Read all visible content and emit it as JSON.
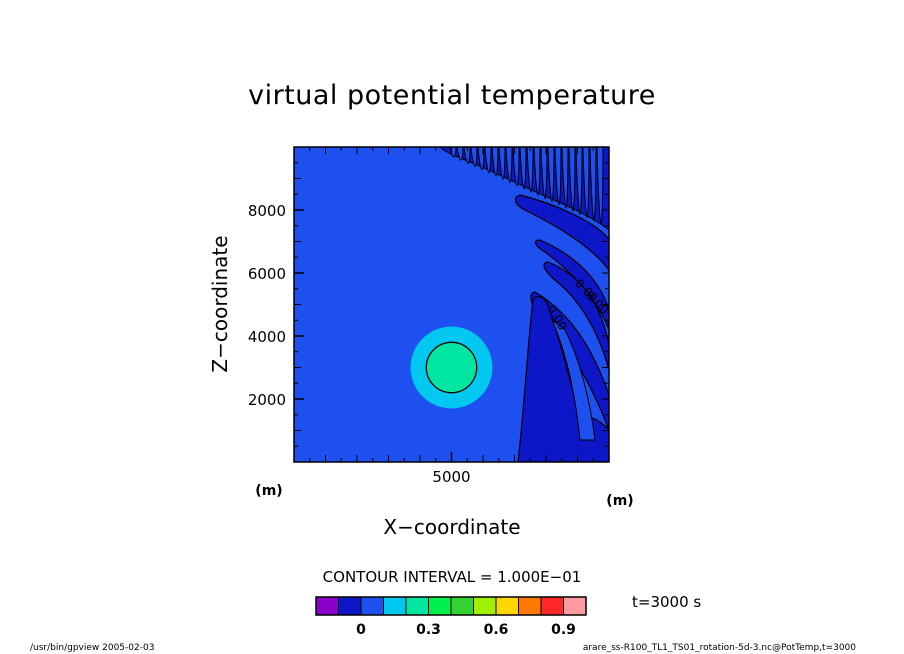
{
  "chart_data": {
    "type": "heatmap",
    "title": "virtual potential temperature",
    "xlabel": "X−coordinate",
    "ylabel": "Z−coordinate",
    "x_unit": "(m)",
    "y_unit": "(m)",
    "xlim": [
      0,
      10000
    ],
    "ylim": [
      0,
      10000
    ],
    "x_ticks": [
      {
        "value": 5000,
        "label": "5000"
      }
    ],
    "y_ticks": [
      {
        "value": 2000,
        "label": "2000"
      },
      {
        "value": 4000,
        "label": "4000"
      },
      {
        "value": 6000,
        "label": "6000"
      },
      {
        "value": 8000,
        "label": "8000"
      }
    ],
    "background_level": 0,
    "bubble": {
      "center_x": 5000,
      "center_z": 3000,
      "outer_radius": 1300,
      "inner_radius": 800,
      "outer_value": 0.2,
      "inner_value": 0.3
    },
    "contour_labels": [
      "0.00",
      "0.00",
      "0.00"
    ],
    "contour_interval_text": "CONTOUR INTERVAL = 1.000E−01",
    "colorbar": {
      "colors": [
        "#8a00c8",
        "#0d17c8",
        "#1e50f0",
        "#00c8f0",
        "#00e6a0",
        "#00f050",
        "#32d232",
        "#a0f000",
        "#ffd700",
        "#ff7800",
        "#ff2828",
        "#ff9ba0"
      ],
      "tick_labels": [
        {
          "value": 0,
          "label": "0"
        },
        {
          "value": 0.3,
          "label": "0.3"
        },
        {
          "value": 0.6,
          "label": "0.6"
        },
        {
          "value": 0.9,
          "label": "0.9"
        }
      ],
      "range": [
        -0.2,
        1.0
      ]
    },
    "time_label": "t=3000 s",
    "footer_left": "/usr/bin/gpview  2005-02-03",
    "footer_right": "arare_ss-R100_TL1_TS01_rotation-5d-3.nc@PotTemp,t=3000"
  }
}
